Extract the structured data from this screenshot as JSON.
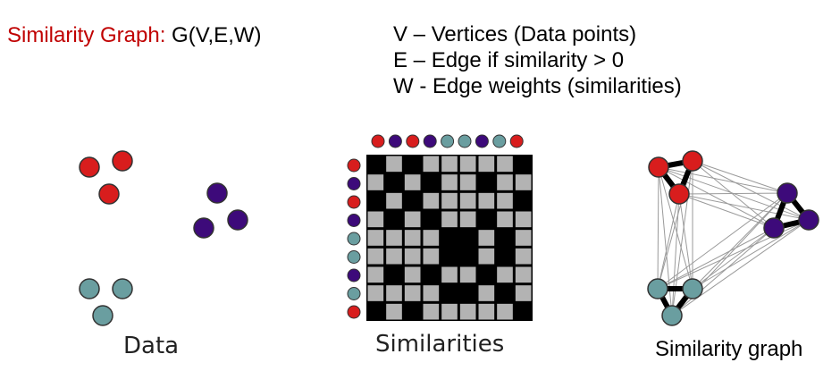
{
  "header": {
    "title_label": "Similarity Graph:",
    "title_formula": "G(V,E,W)",
    "definitions": [
      "V – Vertices (Data points)",
      "E – Edge if similarity > 0",
      "W - Edge weights (similarities)"
    ]
  },
  "panels": {
    "data_label": "Data",
    "similarities_label": "Similarities",
    "graph_label": "Similarity graph"
  },
  "colors": {
    "red": "#d81d1d",
    "purple": "#3d0a7a",
    "teal": "#6a9ea0",
    "title_red": "#c00000",
    "matrix_black": "#000000",
    "matrix_gray": "#b3b3b3"
  },
  "points": [
    {
      "cluster": "red"
    },
    {
      "cluster": "red"
    },
    {
      "cluster": "red"
    },
    {
      "cluster": "purple"
    },
    {
      "cluster": "purple"
    },
    {
      "cluster": "purple"
    },
    {
      "cluster": "teal"
    },
    {
      "cluster": "teal"
    },
    {
      "cluster": "teal"
    }
  ],
  "matrix": {
    "column_order": [
      "red",
      "purple",
      "red",
      "purple",
      "teal",
      "teal",
      "purple",
      "teal",
      "red"
    ],
    "row_order": [
      "red",
      "purple",
      "red",
      "purple",
      "teal",
      "teal",
      "purple",
      "teal",
      "red"
    ]
  },
  "graph": {
    "edge_style": [
      "thin gray edges between clusters",
      "thick black edges within clusters"
    ]
  }
}
